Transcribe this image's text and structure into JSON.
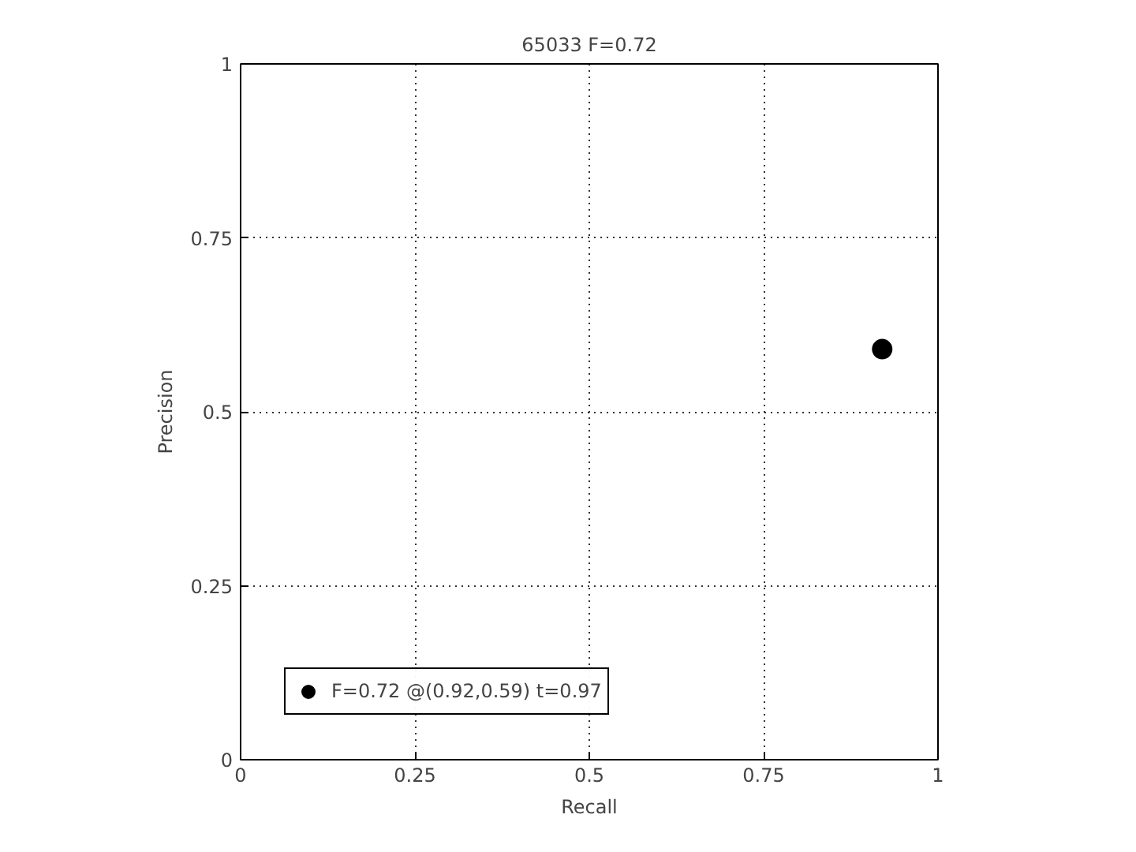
{
  "chart_data": {
    "type": "scatter",
    "title": "65033 F=0.72",
    "xlabel": "Recall",
    "ylabel": "Precision",
    "x": [
      0.92
    ],
    "series": [
      {
        "name": "F=0.72 @(0.92,0.59) t=0.97",
        "color": "#000000",
        "values": [
          0.59
        ]
      }
    ],
    "xlim": [
      0,
      1
    ],
    "ylim": [
      0,
      1
    ],
    "xticks": [
      0,
      0.25,
      0.5,
      0.75,
      1
    ],
    "yticks": [
      0,
      0.25,
      0.5,
      0.75,
      1
    ],
    "grid": true,
    "legend": "bottom left",
    "marker": "circle"
  }
}
